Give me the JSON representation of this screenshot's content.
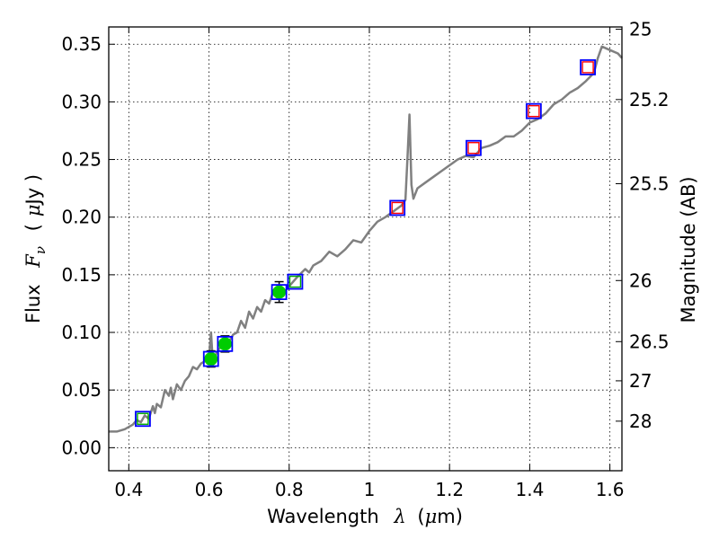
{
  "chart_data": {
    "type": "line",
    "xlabel": {
      "text": "Wavelength",
      "symbol": "λ",
      "unit_prefix": "(",
      "unit_mu": "μ",
      "unit_rest": "m)"
    },
    "ylabel": {
      "text": "Flux",
      "symbol": "F",
      "sub": "ν",
      "unit_prefix": "(",
      "unit_mu": "μ",
      "unit_rest": "Jy )"
    },
    "y2label": "Magnitude (AB)",
    "xlim": [
      0.35,
      1.63
    ],
    "ylim": [
      -0.02,
      0.365
    ],
    "grid": true,
    "x_ticks": [
      {
        "value": 0.4,
        "label": "0.4"
      },
      {
        "value": 0.6,
        "label": "0.6"
      },
      {
        "value": 0.8,
        "label": "0.8"
      },
      {
        "value": 1.0,
        "label": "1"
      },
      {
        "value": 1.2,
        "label": "1.2"
      },
      {
        "value": 1.4,
        "label": "1.4"
      },
      {
        "value": 1.6,
        "label": "1.6"
      }
    ],
    "y_ticks": [
      {
        "value": 0.0,
        "label": "0.00"
      },
      {
        "value": 0.05,
        "label": "0.05"
      },
      {
        "value": 0.1,
        "label": "0.10"
      },
      {
        "value": 0.15,
        "label": "0.15"
      },
      {
        "value": 0.2,
        "label": "0.20"
      },
      {
        "value": 0.25,
        "label": "0.25"
      },
      {
        "value": 0.3,
        "label": "0.30"
      },
      {
        "value": 0.35,
        "label": "0.35"
      }
    ],
    "y2_ticks": [
      {
        "flux": 0.363,
        "label": "25"
      },
      {
        "flux": 0.302,
        "label": "25.2"
      },
      {
        "flux": 0.229,
        "label": "25.5"
      },
      {
        "flux": 0.145,
        "label": "26"
      },
      {
        "flux": 0.092,
        "label": "26.5"
      },
      {
        "flux": 0.058,
        "label": "27"
      },
      {
        "flux": 0.023,
        "label": "28"
      }
    ],
    "series": [
      {
        "kind": "spectrum",
        "color": "#808080",
        "x": [
          0.35,
          0.37,
          0.39,
          0.41,
          0.42,
          0.43,
          0.44,
          0.45,
          0.46,
          0.465,
          0.47,
          0.48,
          0.49,
          0.5,
          0.505,
          0.51,
          0.52,
          0.53,
          0.54,
          0.55,
          0.56,
          0.57,
          0.58,
          0.59,
          0.6,
          0.605,
          0.61,
          0.62,
          0.63,
          0.64,
          0.65,
          0.66,
          0.67,
          0.68,
          0.69,
          0.7,
          0.71,
          0.72,
          0.73,
          0.74,
          0.75,
          0.76,
          0.77,
          0.78,
          0.79,
          0.8,
          0.82,
          0.84,
          0.85,
          0.86,
          0.88,
          0.9,
          0.92,
          0.94,
          0.96,
          0.98,
          1.0,
          1.02,
          1.04,
          1.06,
          1.08,
          1.09,
          1.095,
          1.1,
          1.105,
          1.11,
          1.12,
          1.14,
          1.16,
          1.18,
          1.2,
          1.22,
          1.24,
          1.26,
          1.28,
          1.3,
          1.32,
          1.34,
          1.36,
          1.38,
          1.4,
          1.42,
          1.44,
          1.46,
          1.48,
          1.5,
          1.52,
          1.54,
          1.56,
          1.57,
          1.58,
          1.6,
          1.62,
          1.63
        ],
        "y": [
          0.014,
          0.014,
          0.016,
          0.02,
          0.024,
          0.022,
          0.028,
          0.025,
          0.036,
          0.03,
          0.038,
          0.035,
          0.05,
          0.045,
          0.052,
          0.042,
          0.055,
          0.05,
          0.058,
          0.062,
          0.07,
          0.068,
          0.073,
          0.075,
          0.078,
          0.1,
          0.072,
          0.083,
          0.088,
          0.09,
          0.092,
          0.098,
          0.1,
          0.11,
          0.104,
          0.118,
          0.112,
          0.122,
          0.118,
          0.128,
          0.125,
          0.135,
          0.13,
          0.138,
          0.136,
          0.14,
          0.148,
          0.155,
          0.152,
          0.158,
          0.162,
          0.17,
          0.166,
          0.172,
          0.18,
          0.178,
          0.188,
          0.196,
          0.2,
          0.205,
          0.21,
          0.215,
          0.25,
          0.289,
          0.228,
          0.216,
          0.225,
          0.23,
          0.235,
          0.24,
          0.245,
          0.25,
          0.253,
          0.252,
          0.26,
          0.262,
          0.265,
          0.27,
          0.27,
          0.275,
          0.282,
          0.285,
          0.29,
          0.298,
          0.302,
          0.308,
          0.312,
          0.318,
          0.325,
          0.338,
          0.348,
          0.345,
          0.342,
          0.338
        ]
      }
    ],
    "model_points": {
      "edge_color": "#0000ff",
      "points": [
        {
          "x": 0.435,
          "y": 0.025
        },
        {
          "x": 0.605,
          "y": 0.077
        },
        {
          "x": 0.64,
          "y": 0.09
        },
        {
          "x": 0.775,
          "y": 0.135
        },
        {
          "x": 0.815,
          "y": 0.144
        },
        {
          "x": 1.07,
          "y": 0.208
        },
        {
          "x": 1.26,
          "y": 0.26
        },
        {
          "x": 1.41,
          "y": 0.292
        },
        {
          "x": 1.545,
          "y": 0.33
        }
      ]
    },
    "inner_squares": [
      {
        "x": 0.435,
        "y": 0.025,
        "color": "#00aa00"
      },
      {
        "x": 0.815,
        "y": 0.144,
        "color": "#00aa00"
      },
      {
        "x": 1.07,
        "y": 0.208,
        "color": "#ff0000"
      },
      {
        "x": 1.26,
        "y": 0.26,
        "color": "#ff0000"
      },
      {
        "x": 1.41,
        "y": 0.292,
        "color": "#ff0000"
      },
      {
        "x": 1.545,
        "y": 0.33,
        "color": "#ff0000"
      }
    ],
    "observed_points": {
      "color": "#00cc00",
      "points": [
        {
          "x": 0.605,
          "y": 0.077,
          "err": 0.007
        },
        {
          "x": 0.64,
          "y": 0.09,
          "err": 0.007
        },
        {
          "x": 0.775,
          "y": 0.135,
          "err": 0.009
        }
      ]
    }
  }
}
